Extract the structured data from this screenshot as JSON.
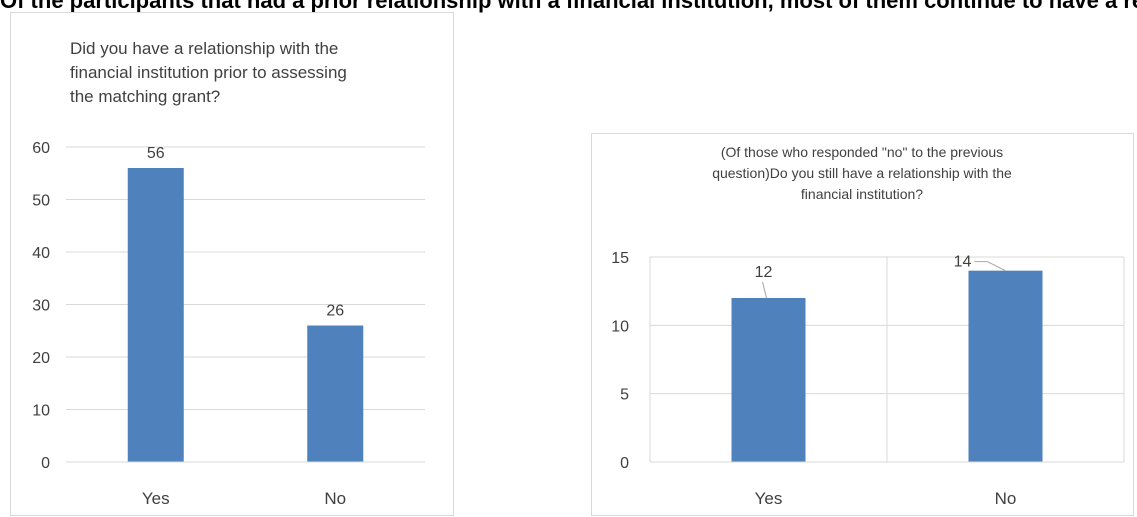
{
  "page": {
    "heading": "Of the participants that had a prior relationship with a financial institution, most of them continue to have a relationship with it after the intervention (number)"
  },
  "colors": {
    "bar": "#4f81bd",
    "grid": "#d9d9d9",
    "text": "#404040",
    "border": "#d9d9d9"
  },
  "chart_data": [
    {
      "type": "bar",
      "title": "Did you have a relationship with the\nfinancial institution prior to assessing\nthe matching grant?",
      "categories": [
        "Yes",
        "No"
      ],
      "values": [
        56,
        26
      ],
      "ylim": [
        0,
        60
      ],
      "yticks": [
        0,
        10,
        20,
        30,
        40,
        50,
        60
      ],
      "grid": "horizontal",
      "legend": "none",
      "xlabel": "",
      "ylabel": ""
    },
    {
      "type": "bar",
      "title": "(Of those who responded \"no\" to the previous\nquestion)Do you still have a relationship with the\nfinancial institution?",
      "categories": [
        "Yes",
        "No"
      ],
      "values": [
        12,
        14
      ],
      "ylim": [
        0,
        15
      ],
      "yticks": [
        0,
        5,
        10,
        15
      ],
      "grid": "both",
      "legend": "none",
      "xlabel": "",
      "ylabel": ""
    }
  ]
}
